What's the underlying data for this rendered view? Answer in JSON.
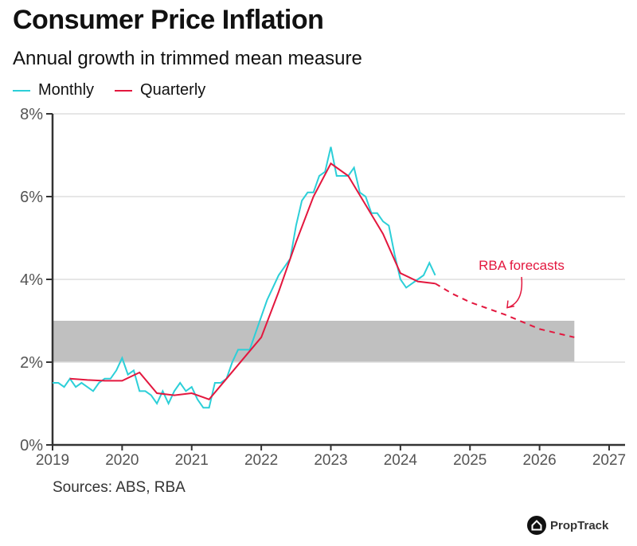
{
  "title": "Consumer Price Inflation",
  "subtitle": "Annual growth in trimmed mean measure",
  "source": "Sources: ABS, RBA",
  "logo": "PropTrack",
  "colors": {
    "monthly": "#2ccfd8",
    "quarterly": "#e3173e",
    "band": "#c0c0c0",
    "grid": "#dddddd",
    "axis": "#333333"
  },
  "chart_data": {
    "type": "line",
    "title": "Consumer Price Inflation",
    "subtitle": "Annual growth in trimmed mean measure",
    "xlim": [
      2019,
      2027
    ],
    "ylim": [
      0,
      8
    ],
    "x_ticks": [
      "2019",
      "2020",
      "2021",
      "2022",
      "2023",
      "2024",
      "2025",
      "2026",
      "2027"
    ],
    "y_ticks": [
      "0%",
      "2%",
      "4%",
      "6%",
      "8%"
    ],
    "grid": "horizontal",
    "legend": "top-left",
    "target_band": {
      "from": 2,
      "to": 3,
      "x_end": 2026.5
    },
    "series": [
      {
        "name": "Monthly",
        "start": "2019-01",
        "frequency": "monthly",
        "values": [
          1.5,
          1.5,
          1.4,
          1.6,
          1.4,
          1.5,
          1.4,
          1.3,
          1.5,
          1.6,
          1.6,
          1.8,
          2.1,
          1.7,
          1.8,
          1.3,
          1.3,
          1.2,
          1.0,
          1.3,
          1.0,
          1.3,
          1.5,
          1.3,
          1.4,
          1.1,
          0.9,
          0.9,
          1.5,
          1.5,
          1.6,
          2.0,
          2.3,
          2.3,
          2.3,
          2.7,
          3.1,
          3.5,
          3.8,
          4.1,
          4.3,
          4.5,
          5.3,
          5.9,
          6.1,
          6.1,
          6.5,
          6.6,
          7.2,
          6.5,
          6.5,
          6.5,
          6.7,
          6.1,
          6.0,
          5.6,
          5.6,
          5.4,
          5.3,
          4.6,
          4.0,
          3.8,
          3.9,
          4.0,
          4.1,
          4.4,
          4.1
        ]
      },
      {
        "name": "Quarterly",
        "x": [
          2019.25,
          2019.5,
          2019.75,
          2020.0,
          2020.25,
          2020.5,
          2020.75,
          2021.0,
          2021.25,
          2021.5,
          2021.75,
          2022.0,
          2022.25,
          2022.5,
          2022.75,
          2023.0,
          2023.25,
          2023.5,
          2023.75,
          2024.0,
          2024.25,
          2024.5
        ],
        "values": [
          1.6,
          1.57,
          1.55,
          1.55,
          1.75,
          1.25,
          1.2,
          1.25,
          1.1,
          1.6,
          2.1,
          2.6,
          3.7,
          4.9,
          6.0,
          6.8,
          6.5,
          5.8,
          5.1,
          4.15,
          3.95,
          3.9
        ]
      },
      {
        "name": "RBA forecasts",
        "style": "dashed",
        "x": [
          2024.5,
          2024.75,
          2025.0,
          2025.5,
          2026.0,
          2026.5
        ],
        "values": [
          3.9,
          3.65,
          3.45,
          3.15,
          2.8,
          2.6
        ]
      }
    ],
    "annotations": [
      {
        "text": "RBA forecasts",
        "points_to": [
          2025.5,
          3.2
        ]
      }
    ]
  }
}
